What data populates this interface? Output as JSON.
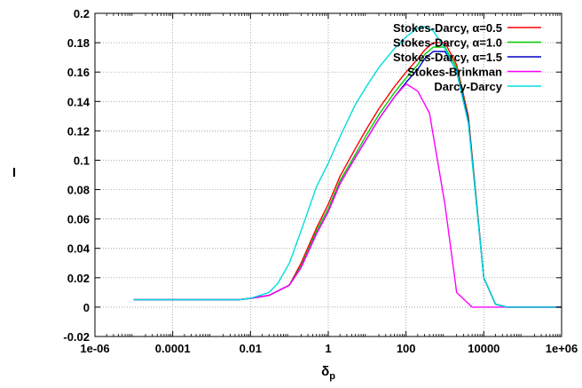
{
  "chart_data": {
    "type": "line",
    "xscale": "log",
    "grid": true,
    "legend_position": "top-right",
    "xlabel": "δp",
    "ylabel": "I",
    "xlim": [
      1e-06,
      1000000
    ],
    "ylim": [
      -0.02,
      0.2
    ],
    "xtick_labels": [
      "1e-06",
      "0.0001",
      "0.01",
      "1",
      "100",
      "10000",
      "1e+06"
    ],
    "ytick_labels": [
      "-0.02",
      "0",
      "0.02",
      "0.04",
      "0.06",
      "0.08",
      "0.1",
      "0.12",
      "0.14",
      "0.16",
      "0.18",
      "0.2"
    ],
    "series": [
      {
        "name": "Stokes-Darcy, α=0.5",
        "color": "#ff0000",
        "x": [
          1e-05,
          0.0001,
          0.001,
          0.005,
          0.01,
          0.03,
          0.1,
          0.2,
          0.5,
          1,
          2,
          5,
          10,
          20,
          50,
          100,
          200,
          300,
          500,
          1000,
          2000,
          4000,
          10000,
          20000,
          40000,
          1000000
        ],
        "y": [
          0.005,
          0.005,
          0.005,
          0.005,
          0.006,
          0.008,
          0.015,
          0.03,
          0.054,
          0.07,
          0.089,
          0.108,
          0.122,
          0.135,
          0.15,
          0.16,
          0.169,
          0.175,
          0.18,
          0.18,
          0.165,
          0.13,
          0.02,
          0.002,
          0.0,
          0.0
        ]
      },
      {
        "name": "Stokes-Darcy, α=1.0",
        "color": "#00cc00",
        "x": [
          1e-05,
          0.0001,
          0.001,
          0.005,
          0.01,
          0.03,
          0.1,
          0.2,
          0.5,
          1,
          2,
          5,
          10,
          20,
          50,
          100,
          200,
          300,
          500,
          1000,
          2000,
          4000,
          10000,
          20000,
          40000,
          1000000
        ],
        "y": [
          0.005,
          0.005,
          0.005,
          0.005,
          0.006,
          0.008,
          0.015,
          0.028,
          0.052,
          0.067,
          0.086,
          0.104,
          0.118,
          0.131,
          0.146,
          0.156,
          0.165,
          0.172,
          0.177,
          0.177,
          0.163,
          0.128,
          0.02,
          0.002,
          0.0,
          0.0
        ]
      },
      {
        "name": "Stokes-Darcy, α=1.5",
        "color": "#0000cc",
        "x": [
          1e-05,
          0.0001,
          0.001,
          0.005,
          0.01,
          0.03,
          0.1,
          0.2,
          0.5,
          1,
          2,
          5,
          10,
          20,
          50,
          100,
          200,
          300,
          500,
          1000,
          2000,
          4000,
          10000,
          20000,
          40000,
          1000000
        ],
        "y": [
          0.005,
          0.005,
          0.005,
          0.005,
          0.006,
          0.008,
          0.015,
          0.027,
          0.05,
          0.065,
          0.084,
          0.102,
          0.115,
          0.128,
          0.143,
          0.153,
          0.162,
          0.169,
          0.174,
          0.174,
          0.161,
          0.127,
          0.02,
          0.002,
          0.0,
          0.0
        ]
      },
      {
        "name": "Stokes-Brinkman",
        "color": "#ff00ff",
        "x": [
          1e-05,
          0.0001,
          0.001,
          0.005,
          0.01,
          0.03,
          0.1,
          0.2,
          0.5,
          1,
          2,
          5,
          10,
          20,
          50,
          100,
          200,
          400,
          1000,
          2000,
          5000,
          20000,
          1000000
        ],
        "y": [
          0.005,
          0.005,
          0.005,
          0.005,
          0.006,
          0.008,
          0.015,
          0.027,
          0.05,
          0.065,
          0.084,
          0.102,
          0.115,
          0.128,
          0.143,
          0.152,
          0.147,
          0.132,
          0.07,
          0.01,
          0.0,
          0.0,
          0.0
        ]
      },
      {
        "name": "Darcy-Darcy",
        "color": "#00dddd",
        "x": [
          1e-05,
          0.0001,
          0.001,
          0.005,
          0.01,
          0.03,
          0.05,
          0.1,
          0.2,
          0.5,
          1,
          2,
          5,
          10,
          20,
          50,
          100,
          200,
          300,
          500,
          1000,
          2000,
          4000,
          10000,
          20000,
          40000,
          1000000
        ],
        "y": [
          0.005,
          0.005,
          0.005,
          0.005,
          0.006,
          0.01,
          0.016,
          0.03,
          0.052,
          0.082,
          0.098,
          0.116,
          0.138,
          0.151,
          0.163,
          0.176,
          0.184,
          0.19,
          0.191,
          0.188,
          0.176,
          0.16,
          0.125,
          0.02,
          0.002,
          0.0,
          0.0
        ]
      }
    ]
  }
}
